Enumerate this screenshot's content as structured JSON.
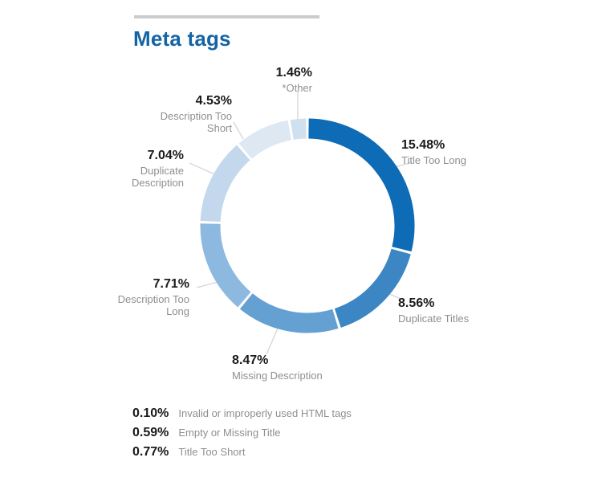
{
  "header": {
    "title": "Meta tags"
  },
  "colors": {
    "title_text": "#1464a5",
    "value_text": "#1a1a1a",
    "label_text": "#8f8f8f",
    "leader_line": "#dadada",
    "divider": "#cbcbcb"
  },
  "chart_data": {
    "type": "donut",
    "title": "Meta tags",
    "unit": "%",
    "legend_position": "around",
    "segments": [
      {
        "label": "Title Too Long",
        "value": 15.48,
        "display": "15.48%",
        "color": "#0e6bb5"
      },
      {
        "label": "Duplicate Titles",
        "value": 8.56,
        "display": "8.56%",
        "color": "#3c86c4"
      },
      {
        "label": "Missing Description",
        "value": 8.47,
        "display": "8.47%",
        "color": "#64a0d2"
      },
      {
        "label": "Description Too Long",
        "value": 7.71,
        "display": "7.71%",
        "color": "#8db9e0"
      },
      {
        "label": "Duplicate Description",
        "value": 7.04,
        "display": "7.04%",
        "color": "#c3d8ec"
      },
      {
        "label": "Description Too Short",
        "value": 4.53,
        "display": "4.53%",
        "color": "#dde8f3"
      },
      {
        "label": "*Other",
        "value": 1.46,
        "display": "1.46%",
        "color": "#cfe0ef"
      }
    ],
    "footnotes": [
      {
        "display": "0.10%",
        "label": "Invalid or improperly used HTML tags"
      },
      {
        "display": "0.59%",
        "label": "Empty or Missing Title"
      },
      {
        "display": "0.77%",
        "label": "Title Too Short"
      }
    ]
  }
}
